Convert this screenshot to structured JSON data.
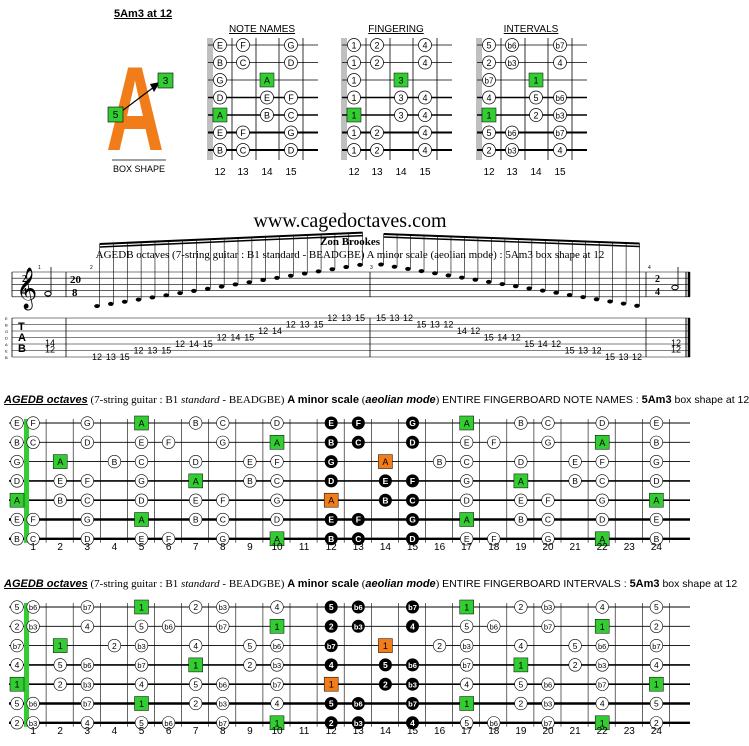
{
  "top": {
    "shape_title": "5Am3 at 12",
    "big_letter": "A",
    "box_markers": [
      "3",
      "5"
    ],
    "box_shape_label": "BOX SHAPE",
    "diagrams": [
      {
        "title": "NOTE NAMES",
        "rows": [
          [
            {
              "t": "E",
              "s": "w"
            },
            {
              "t": "F",
              "s": "w"
            },
            null,
            {
              "t": "G",
              "s": "w"
            }
          ],
          [
            {
              "t": "B",
              "s": "w"
            },
            {
              "t": "C",
              "s": "w"
            },
            null,
            {
              "t": "D",
              "s": "w"
            }
          ],
          [
            {
              "t": "G",
              "s": "w"
            },
            null,
            {
              "t": "A",
              "s": "g"
            },
            null
          ],
          [
            {
              "t": "D",
              "s": "w"
            },
            null,
            {
              "t": "E",
              "s": "w"
            },
            {
              "t": "F",
              "s": "w"
            }
          ],
          [
            {
              "t": "A",
              "s": "g"
            },
            null,
            {
              "t": "B",
              "s": "w"
            },
            {
              "t": "C",
              "s": "w"
            }
          ],
          [
            {
              "t": "E",
              "s": "w"
            },
            {
              "t": "F",
              "s": "w"
            },
            null,
            {
              "t": "G",
              "s": "w"
            }
          ],
          [
            {
              "t": "B",
              "s": "w"
            },
            {
              "t": "C",
              "s": "w"
            },
            null,
            {
              "t": "D",
              "s": "w"
            }
          ]
        ]
      },
      {
        "title": "FINGERING",
        "rows": [
          [
            {
              "t": "1",
              "s": "w"
            },
            {
              "t": "2",
              "s": "w"
            },
            null,
            {
              "t": "4",
              "s": "w"
            }
          ],
          [
            {
              "t": "1",
              "s": "w"
            },
            {
              "t": "2",
              "s": "w"
            },
            null,
            {
              "t": "4",
              "s": "w"
            }
          ],
          [
            {
              "t": "1",
              "s": "w"
            },
            null,
            {
              "t": "3",
              "s": "g"
            },
            null
          ],
          [
            {
              "t": "1",
              "s": "w"
            },
            null,
            {
              "t": "3",
              "s": "w"
            },
            {
              "t": "4",
              "s": "w"
            }
          ],
          [
            {
              "t": "1",
              "s": "g"
            },
            null,
            {
              "t": "3",
              "s": "w"
            },
            {
              "t": "4",
              "s": "w"
            }
          ],
          [
            {
              "t": "1",
              "s": "w"
            },
            {
              "t": "2",
              "s": "w"
            },
            null,
            {
              "t": "4",
              "s": "w"
            }
          ],
          [
            {
              "t": "1",
              "s": "w"
            },
            {
              "t": "2",
              "s": "w"
            },
            null,
            {
              "t": "4",
              "s": "w"
            }
          ]
        ]
      },
      {
        "title": "INTERVALS",
        "rows": [
          [
            {
              "t": "5",
              "s": "w"
            },
            {
              "t": "b6",
              "s": "w"
            },
            null,
            {
              "t": "b7",
              "s": "w"
            }
          ],
          [
            {
              "t": "2",
              "s": "w"
            },
            {
              "t": "b3",
              "s": "w"
            },
            null,
            {
              "t": "4",
              "s": "w"
            }
          ],
          [
            {
              "t": "b7",
              "s": "w"
            },
            null,
            {
              "t": "1",
              "s": "g"
            },
            null
          ],
          [
            {
              "t": "4",
              "s": "w"
            },
            null,
            {
              "t": "5",
              "s": "w"
            },
            {
              "t": "b6",
              "s": "w"
            }
          ],
          [
            {
              "t": "1",
              "s": "g"
            },
            null,
            {
              "t": "2",
              "s": "w"
            },
            {
              "t": "b3",
              "s": "w"
            }
          ],
          [
            {
              "t": "5",
              "s": "w"
            },
            {
              "t": "b6",
              "s": "w"
            },
            null,
            {
              "t": "b7",
              "s": "w"
            }
          ],
          [
            {
              "t": "2",
              "s": "w"
            },
            {
              "t": "b3",
              "s": "w"
            },
            null,
            {
              "t": "4",
              "s": "w"
            }
          ]
        ]
      }
    ],
    "fret_labels": [
      "12",
      "13",
      "14",
      "15"
    ]
  },
  "site": {
    "url": "www.cagedoctaves.com",
    "author": "Zon Brookes",
    "subtitle": "AGEDB octaves (7-string guitar : B1 standard - BEADGBE) A minor scale (aeolian mode) : 5Am3 box shape at 12"
  },
  "tab": {
    "time_sig_start": [
      "2",
      "4"
    ],
    "tuplet_sig": [
      "20",
      "8"
    ],
    "time_sig_end": [
      "2",
      "4"
    ],
    "clef_label": "TAB",
    "string_names": [
      "E",
      "B",
      "G",
      "D",
      "A",
      "E",
      "B"
    ],
    "measure_numbers": [
      "1",
      "2",
      "3",
      "4"
    ],
    "m1": [
      "14",
      "12"
    ],
    "ascend": [
      {
        "s": 6,
        "f": "12"
      },
      {
        "s": 6,
        "f": "13"
      },
      {
        "s": 6,
        "f": "15"
      },
      {
        "s": 5,
        "f": "12"
      },
      {
        "s": 5,
        "f": "13"
      },
      {
        "s": 5,
        "f": "15"
      },
      {
        "s": 4,
        "f": "12"
      },
      {
        "s": 4,
        "f": "14"
      },
      {
        "s": 4,
        "f": "15"
      },
      {
        "s": 3,
        "f": "12"
      },
      {
        "s": 3,
        "f": "14"
      },
      {
        "s": 3,
        "f": "15"
      },
      {
        "s": 2,
        "f": "12"
      },
      {
        "s": 2,
        "f": "14"
      },
      {
        "s": 1,
        "f": "12"
      },
      {
        "s": 1,
        "f": "13"
      },
      {
        "s": 1,
        "f": "15"
      },
      {
        "s": 0,
        "f": "12"
      },
      {
        "s": 0,
        "f": "13"
      },
      {
        "s": 0,
        "f": "15"
      }
    ],
    "descend": [
      {
        "s": 0,
        "f": "15"
      },
      {
        "s": 0,
        "f": "13"
      },
      {
        "s": 0,
        "f": "12"
      },
      {
        "s": 1,
        "f": "15"
      },
      {
        "s": 1,
        "f": "13"
      },
      {
        "s": 1,
        "f": "12"
      },
      {
        "s": 2,
        "f": "14"
      },
      {
        "s": 2,
        "f": "12"
      },
      {
        "s": 3,
        "f": "15"
      },
      {
        "s": 3,
        "f": "14"
      },
      {
        "s": 3,
        "f": "12"
      },
      {
        "s": 4,
        "f": "15"
      },
      {
        "s": 4,
        "f": "14"
      },
      {
        "s": 4,
        "f": "12"
      },
      {
        "s": 5,
        "f": "15"
      },
      {
        "s": 5,
        "f": "13"
      },
      {
        "s": 5,
        "f": "12"
      },
      {
        "s": 6,
        "f": "15"
      },
      {
        "s": 6,
        "f": "13"
      },
      {
        "s": 6,
        "f": "12"
      }
    ],
    "m4": [
      "12",
      "12"
    ]
  },
  "board1": {
    "header": {
      "name": "AGEDB octaves",
      "mid": " (7-string guitar : B1 ",
      "standard": "standard",
      "tuning": " - BEADGBE) ",
      "scale": "A minor scale",
      "paren_open": " (",
      "mode": "aeolian mode",
      "paren_close": ") ",
      "kind": "ENTIRE FINGERBOARD NOTE NAMES : ",
      "shape": "5Am3",
      "tail": " box shape at 12"
    },
    "strings": [
      "E F . G . A . B C . D . E F . G . A . B C . D . E",
      "B C . D . E F . G . A . B C . D . E F . G . A . B",
      "G . A . B C . D . E F . G . A . B C . D . E F . G",
      "D . E F . G . A . B C . D . E F . G . A . B C . D",
      "A . B C . D . E F . G . A . B C . D . E F . G . A",
      "E F . G . A . B C . D . E F . G . A . B C . D . E",
      "B C . D . E F . G . A . B C . D . E F . G . A . B"
    ]
  },
  "board2": {
    "header": {
      "name": "AGEDB octaves",
      "mid": " (7-string guitar : B1 ",
      "standard": "standard",
      "tuning": " - BEADGBE) ",
      "scale": "A minor scale",
      "paren_open": " (",
      "mode": "aeolian mode",
      "paren_close": ") ",
      "kind": "ENTIRE FINGERBOARD INTERVALS : ",
      "shape": "5Am3",
      "tail": " box shape at 12"
    },
    "strings": [
      "5 b6 . b7 . 1 . 2 b3 . 4 . 5 b6 . b7 . 1 . 2 b3 . 4 . 5",
      "2 b3 . 4 . 5 b6 . b7 . 1 . 2 b3 . 4 . 5 b6 . b7 . 1 . 2",
      "b7 . 1 . 2 b3 . 4 . 5 b6 . b7 . 1 . 2 b3 . 4 . 5 b6 . b7",
      "4 . 5 b6 . b7 . 1 . 2 b3 . 4 . 5 b6 . b7 . 1 . 2 b3 . 4",
      "1 . 2 b3 . 4 . 5 b6 . b7 . 1 . 2 b3 . 4 . 5 b6 . b7 . 1",
      "5 b6 . b7 . 1 . 2 b3 . 4 . 5 b6 . b7 . 1 . 2 b3 . 4 . 5",
      "2 b3 . 4 . 5 b6 . b7 . 1 . 2 b3 . 4 . 5 b6 . b7 . 1 . 2"
    ]
  },
  "board_frets": [
    "1",
    "2",
    "3",
    "4",
    "5",
    "6",
    "7",
    "8",
    "9",
    "10",
    "11",
    "12",
    "13",
    "14",
    "15",
    "16",
    "17",
    "18",
    "19",
    "20",
    "21",
    "22",
    "23",
    "24"
  ],
  "colors": {
    "green": "#33cc33",
    "orange": "#f07d1a",
    "black": "#000000"
  }
}
